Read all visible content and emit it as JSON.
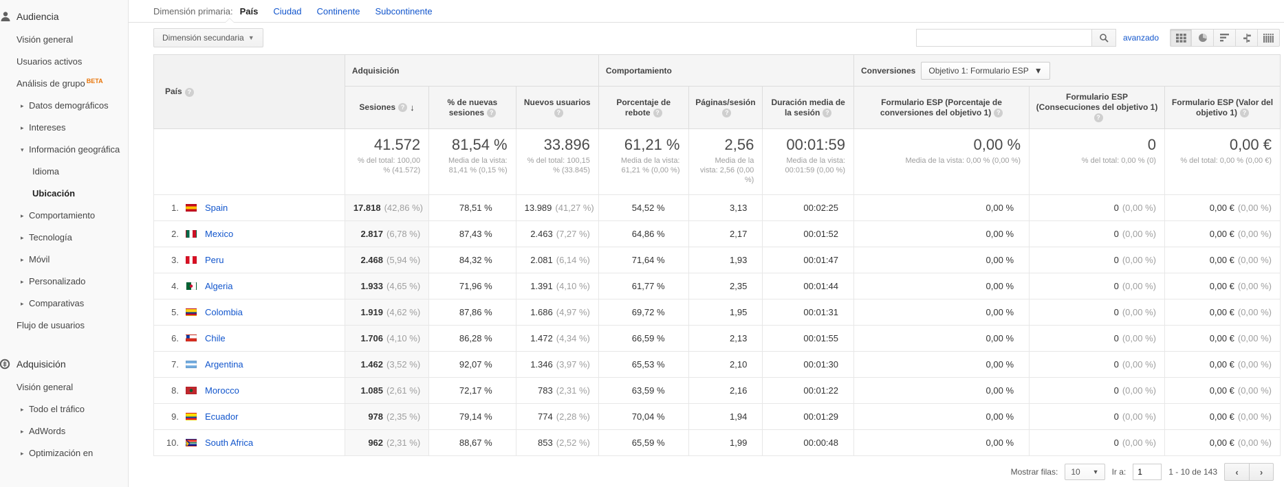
{
  "sidebar": {
    "sections": [
      {
        "icon": "audience-icon",
        "label": "Audiencia",
        "items": [
          {
            "label": "Visión general",
            "indent": 1
          },
          {
            "label": "Usuarios activos",
            "indent": 1
          },
          {
            "label": "Análisis de grupo",
            "indent": 1,
            "beta": "BETA"
          },
          {
            "label": "Datos demográficos",
            "indent": 1,
            "arrow": "right"
          },
          {
            "label": "Intereses",
            "indent": 1,
            "arrow": "right"
          },
          {
            "label": "Información geográfica",
            "indent": 1,
            "arrow": "down"
          },
          {
            "label": "Idioma",
            "indent": 2
          },
          {
            "label": "Ubicación",
            "indent": 2,
            "active": true
          },
          {
            "label": "Comportamiento",
            "indent": 1,
            "arrow": "right"
          },
          {
            "label": "Tecnología",
            "indent": 1,
            "arrow": "right"
          },
          {
            "label": "Móvil",
            "indent": 1,
            "arrow": "right"
          },
          {
            "label": "Personalizado",
            "indent": 1,
            "arrow": "right"
          },
          {
            "label": "Comparativas",
            "indent": 1,
            "arrow": "right"
          },
          {
            "label": "Flujo de usuarios",
            "indent": 1
          }
        ]
      },
      {
        "icon": "acquisition-icon",
        "label": "Adquisición",
        "items": [
          {
            "label": "Visión general",
            "indent": 1
          },
          {
            "label": "Todo el tráfico",
            "indent": 1,
            "arrow": "right"
          },
          {
            "label": "AdWords",
            "indent": 1,
            "arrow": "right"
          },
          {
            "label": "Optimización en",
            "indent": 1,
            "arrow": "right"
          }
        ]
      }
    ]
  },
  "dimension_bar": {
    "label": "Dimensión primaria:",
    "tabs": [
      {
        "label": "País",
        "active": true
      },
      {
        "label": "Ciudad"
      },
      {
        "label": "Continente"
      },
      {
        "label": "Subcontinente"
      }
    ]
  },
  "toolbar": {
    "secondary_dimension_label": "Dimensión secundaria",
    "search_value": "",
    "advanced_label": "avanzado"
  },
  "table": {
    "country_header": "País",
    "groups": {
      "acquisition": "Adquisición",
      "behavior": "Comportamiento",
      "conversions": "Conversiones",
      "goal_selector": "Objetivo 1: Formulario ESP"
    },
    "columns": {
      "sessions": "Sesiones",
      "new_sessions_pct": "% de nuevas sesiones",
      "new_users": "Nuevos usuarios",
      "bounce_rate": "Porcentaje de rebote",
      "pages_session": "Páginas/sesión",
      "avg_duration": "Duración media de la sesión",
      "goal_conv_rate": "Formulario ESP (Porcentaje de conversiones del objetivo 1)",
      "goal_completions": "Formulario ESP (Consecuciones del objetivo 1)",
      "goal_value": "Formulario ESP (Valor del objetivo 1)"
    },
    "summary": {
      "sessions": "41.572",
      "sessions_sub": "% del total: 100,00 % (41.572)",
      "new_sessions_pct": "81,54 %",
      "new_sessions_sub": "Media de la vista: 81,41 % (0,15 %)",
      "new_users": "33.896",
      "new_users_sub": "% del total: 100,15 % (33.845)",
      "bounce_rate": "61,21 %",
      "bounce_sub": "Media de la vista: 61,21 % (0,00 %)",
      "pages_session": "2,56",
      "pages_sub": "Media de la vista: 2,56 (0,00 %)",
      "avg_duration": "00:01:59",
      "duration_sub": "Media de la vista: 00:01:59 (0,00 %)",
      "goal_conv_rate": "0,00 %",
      "goal_conv_sub": "Media de la vista: 0,00 % (0,00 %)",
      "goal_completions": "0",
      "goal_completions_sub": "% del total: 0,00 % (0)",
      "goal_value": "0,00 €",
      "goal_value_sub": "% del total: 0,00 % (0,00 €)"
    },
    "rows": [
      {
        "rank": "1.",
        "flag": "flag-spain",
        "country": "Spain",
        "sessions": "17.818",
        "sessions_pct": "(42,86 %)",
        "new_sessions_pct": "78,51 %",
        "new_users": "13.989",
        "new_users_pct": "(41,27 %)",
        "bounce_rate": "54,52 %",
        "pages_session": "3,13",
        "avg_duration": "00:02:25",
        "goal_conv_rate": "0,00 %",
        "goal_completions": "0",
        "goal_completions_pct": "(0,00 %)",
        "goal_value": "0,00 €",
        "goal_value_pct": "(0,00 %)"
      },
      {
        "rank": "2.",
        "flag": "flag-mexico",
        "country": "Mexico",
        "sessions": "2.817",
        "sessions_pct": "(6,78 %)",
        "new_sessions_pct": "87,43 %",
        "new_users": "2.463",
        "new_users_pct": "(7,27 %)",
        "bounce_rate": "64,86 %",
        "pages_session": "2,17",
        "avg_duration": "00:01:52",
        "goal_conv_rate": "0,00 %",
        "goal_completions": "0",
        "goal_completions_pct": "(0,00 %)",
        "goal_value": "0,00 €",
        "goal_value_pct": "(0,00 %)"
      },
      {
        "rank": "3.",
        "flag": "flag-peru",
        "country": "Peru",
        "sessions": "2.468",
        "sessions_pct": "(5,94 %)",
        "new_sessions_pct": "84,32 %",
        "new_users": "2.081",
        "new_users_pct": "(6,14 %)",
        "bounce_rate": "71,64 %",
        "pages_session": "1,93",
        "avg_duration": "00:01:47",
        "goal_conv_rate": "0,00 %",
        "goal_completions": "0",
        "goal_completions_pct": "(0,00 %)",
        "goal_value": "0,00 €",
        "goal_value_pct": "(0,00 %)"
      },
      {
        "rank": "4.",
        "flag": "flag-algeria",
        "country": "Algeria",
        "sessions": "1.933",
        "sessions_pct": "(4,65 %)",
        "new_sessions_pct": "71,96 %",
        "new_users": "1.391",
        "new_users_pct": "(4,10 %)",
        "bounce_rate": "61,77 %",
        "pages_session": "2,35",
        "avg_duration": "00:01:44",
        "goal_conv_rate": "0,00 %",
        "goal_completions": "0",
        "goal_completions_pct": "(0,00 %)",
        "goal_value": "0,00 €",
        "goal_value_pct": "(0,00 %)"
      },
      {
        "rank": "5.",
        "flag": "flag-colombia",
        "country": "Colombia",
        "sessions": "1.919",
        "sessions_pct": "(4,62 %)",
        "new_sessions_pct": "87,86 %",
        "new_users": "1.686",
        "new_users_pct": "(4,97 %)",
        "bounce_rate": "69,72 %",
        "pages_session": "1,95",
        "avg_duration": "00:01:31",
        "goal_conv_rate": "0,00 %",
        "goal_completions": "0",
        "goal_completions_pct": "(0,00 %)",
        "goal_value": "0,00 €",
        "goal_value_pct": "(0,00 %)"
      },
      {
        "rank": "6.",
        "flag": "flag-chile",
        "country": "Chile",
        "sessions": "1.706",
        "sessions_pct": "(4,10 %)",
        "new_sessions_pct": "86,28 %",
        "new_users": "1.472",
        "new_users_pct": "(4,34 %)",
        "bounce_rate": "66,59 %",
        "pages_session": "2,13",
        "avg_duration": "00:01:55",
        "goal_conv_rate": "0,00 %",
        "goal_completions": "0",
        "goal_completions_pct": "(0,00 %)",
        "goal_value": "0,00 €",
        "goal_value_pct": "(0,00 %)"
      },
      {
        "rank": "7.",
        "flag": "flag-argentina",
        "country": "Argentina",
        "sessions": "1.462",
        "sessions_pct": "(3,52 %)",
        "new_sessions_pct": "92,07 %",
        "new_users": "1.346",
        "new_users_pct": "(3,97 %)",
        "bounce_rate": "65,53 %",
        "pages_session": "2,10",
        "avg_duration": "00:01:30",
        "goal_conv_rate": "0,00 %",
        "goal_completions": "0",
        "goal_completions_pct": "(0,00 %)",
        "goal_value": "0,00 €",
        "goal_value_pct": "(0,00 %)"
      },
      {
        "rank": "8.",
        "flag": "flag-morocco",
        "country": "Morocco",
        "sessions": "1.085",
        "sessions_pct": "(2,61 %)",
        "new_sessions_pct": "72,17 %",
        "new_users": "783",
        "new_users_pct": "(2,31 %)",
        "bounce_rate": "63,59 %",
        "pages_session": "2,16",
        "avg_duration": "00:01:22",
        "goal_conv_rate": "0,00 %",
        "goal_completions": "0",
        "goal_completions_pct": "(0,00 %)",
        "goal_value": "0,00 €",
        "goal_value_pct": "(0,00 %)"
      },
      {
        "rank": "9.",
        "flag": "flag-ecuador",
        "country": "Ecuador",
        "sessions": "978",
        "sessions_pct": "(2,35 %)",
        "new_sessions_pct": "79,14 %",
        "new_users": "774",
        "new_users_pct": "(2,28 %)",
        "bounce_rate": "70,04 %",
        "pages_session": "1,94",
        "avg_duration": "00:01:29",
        "goal_conv_rate": "0,00 %",
        "goal_completions": "0",
        "goal_completions_pct": "(0,00 %)",
        "goal_value": "0,00 €",
        "goal_value_pct": "(0,00 %)"
      },
      {
        "rank": "10.",
        "flag": "flag-southafrica",
        "country": "South Africa",
        "sessions": "962",
        "sessions_pct": "(2,31 %)",
        "new_sessions_pct": "88,67 %",
        "new_users": "853",
        "new_users_pct": "(2,52 %)",
        "bounce_rate": "65,59 %",
        "pages_session": "1,99",
        "avg_duration": "00:00:48",
        "goal_conv_rate": "0,00 %",
        "goal_completions": "0",
        "goal_completions_pct": "(0,00 %)",
        "goal_value": "0,00 €",
        "goal_value_pct": "(0,00 %)"
      }
    ]
  },
  "pagination": {
    "rows_label": "Mostrar filas:",
    "rows_value": "10",
    "goto_label": "Ir a:",
    "goto_value": "1",
    "range": "1 - 10 de 143"
  }
}
